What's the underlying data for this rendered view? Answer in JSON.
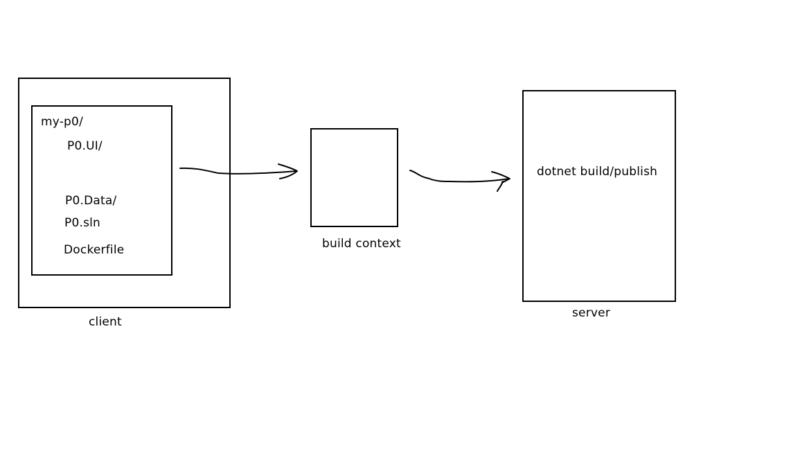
{
  "client": {
    "label": "client",
    "folder": {
      "name": "my-p0/",
      "items": [
        "P0.UI/",
        "P0.Data/",
        "P0.sln",
        "Dockerfile"
      ]
    }
  },
  "build_context": {
    "label": "build context"
  },
  "server": {
    "label": "server",
    "action": "dotnet build/publish"
  },
  "colors": {
    "stroke": "#000000",
    "background": "#ffffff"
  }
}
